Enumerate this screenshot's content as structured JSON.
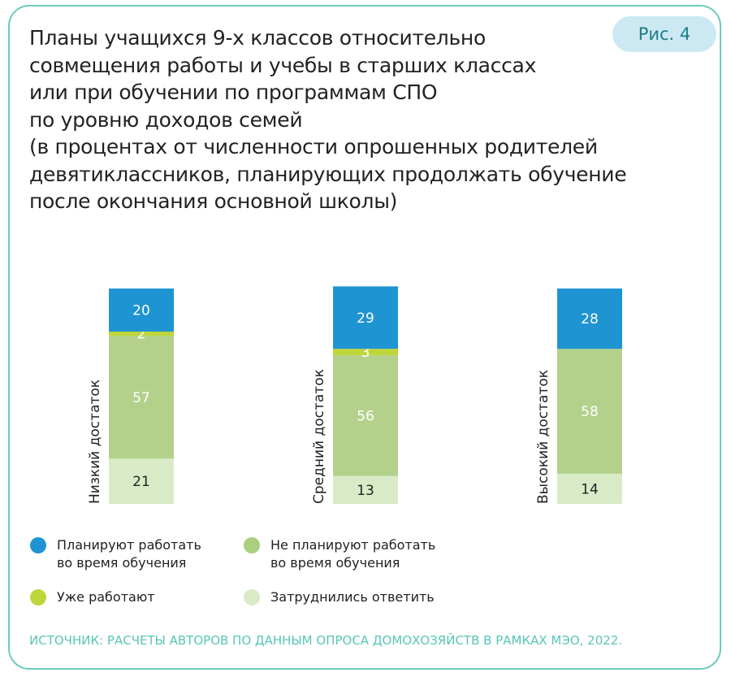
{
  "badge": "Рис. 4",
  "title_lines": [
    "Планы учащихся 9-х классов относительно",
    "совмещения работы и учебы в старших классах",
    "или при обучении по программам СПО",
    "по уровню доходов семей",
    "(в процентах от численности опрошенных родителей",
    "девятиклассников, планирующих продолжать обучение",
    "после окончания основной школы)"
  ],
  "source": "ИСТОЧНИК: РАСЧЕТЫ АВТОРОВ ПО ДАННЫМ ОПРОСА ДОМОХОЗЯЙСТВ В РАМКАХ МЭО, 2022.",
  "chart_data": {
    "type": "bar",
    "stacked": true,
    "categories": [
      "Низкий достаток",
      "Средний достаток",
      "Высокий достаток"
    ],
    "series": [
      {
        "name": "Затруднились ответить",
        "color": "#d9ebc6",
        "values": [
          21,
          13,
          14
        ]
      },
      {
        "name": "Не планируют работать во время обучения",
        "color": "#b3d18b",
        "values": [
          57,
          56,
          58
        ]
      },
      {
        "name": "Уже работают",
        "color": "#bed63a",
        "values": [
          2,
          3,
          0
        ]
      },
      {
        "name": "Планируют работать во время обучения",
        "color": "#1e94d2",
        "values": [
          20,
          29,
          28
        ]
      }
    ],
    "legend": [
      {
        "label_lines": [
          "Планируют работать",
          "во время обучения"
        ],
        "color": "#1e94d2"
      },
      {
        "label_lines": [
          "Не планируют работать",
          "во время обучения"
        ],
        "color": "#a9cf7f"
      },
      {
        "label_lines": [
          "Уже работают"
        ],
        "color": "#bed63a"
      },
      {
        "label_lines": [
          "Затруднились ответить"
        ],
        "color": "#d9ebc6"
      }
    ],
    "legend_position": "bottom",
    "grid": false
  }
}
